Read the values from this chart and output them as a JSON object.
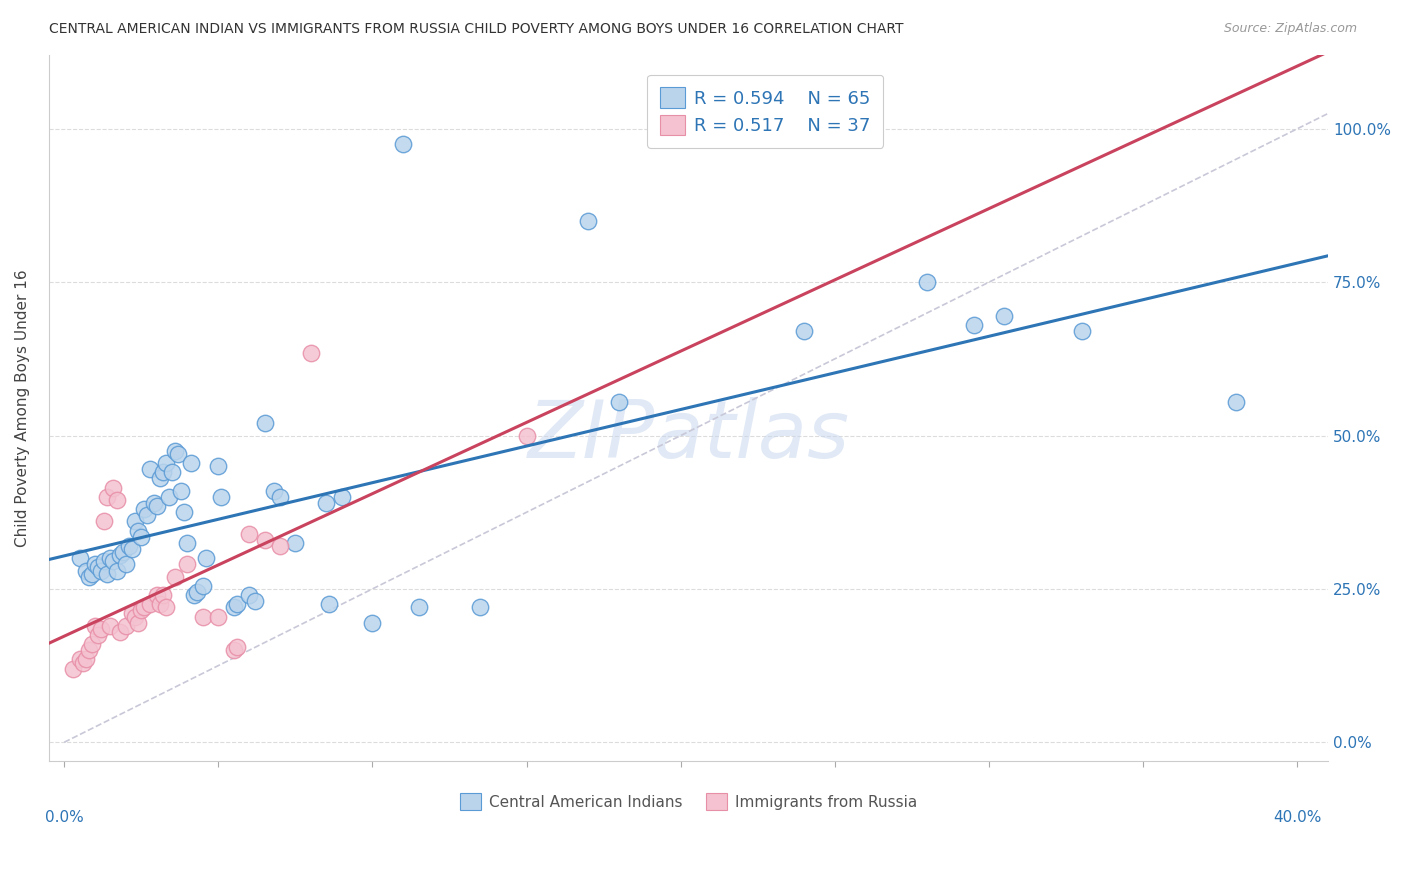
{
  "title": "CENTRAL AMERICAN INDIAN VS IMMIGRANTS FROM RUSSIA CHILD POVERTY AMONG BOYS UNDER 16 CORRELATION CHART",
  "source": "Source: ZipAtlas.com",
  "ylabel": "Child Poverty Among Boys Under 16",
  "legend_blue": {
    "R": "0.594",
    "N": "65",
    "label": "Central American Indians"
  },
  "legend_pink": {
    "R": "0.517",
    "N": "37",
    "label": "Immigrants from Russia"
  },
  "watermark": "ZIPatlas",
  "blue_fill": "#bad4ec",
  "pink_fill": "#f4c2d0",
  "blue_edge": "#5b9bd5",
  "pink_edge": "#e88fa8",
  "blue_line": "#2e75b6",
  "pink_line": "#c9435e",
  "diag_color": "#c8c8d8",
  "blue_scatter": [
    [
      0.5,
      30.0
    ],
    [
      0.7,
      28.0
    ],
    [
      0.8,
      27.0
    ],
    [
      0.9,
      27.5
    ],
    [
      1.0,
      29.0
    ],
    [
      1.1,
      28.5
    ],
    [
      1.2,
      28.0
    ],
    [
      1.3,
      29.5
    ],
    [
      1.4,
      27.5
    ],
    [
      1.5,
      30.0
    ],
    [
      1.6,
      29.5
    ],
    [
      1.7,
      28.0
    ],
    [
      1.8,
      30.5
    ],
    [
      1.9,
      31.0
    ],
    [
      2.0,
      29.0
    ],
    [
      2.1,
      32.0
    ],
    [
      2.2,
      31.5
    ],
    [
      2.3,
      36.0
    ],
    [
      2.4,
      34.5
    ],
    [
      2.5,
      33.5
    ],
    [
      2.6,
      38.0
    ],
    [
      2.7,
      37.0
    ],
    [
      2.8,
      44.5
    ],
    [
      2.9,
      39.0
    ],
    [
      3.0,
      38.5
    ],
    [
      3.1,
      43.0
    ],
    [
      3.2,
      44.0
    ],
    [
      3.3,
      45.5
    ],
    [
      3.4,
      40.0
    ],
    [
      3.5,
      44.0
    ],
    [
      3.6,
      47.5
    ],
    [
      3.7,
      47.0
    ],
    [
      3.8,
      41.0
    ],
    [
      3.9,
      37.5
    ],
    [
      4.0,
      32.5
    ],
    [
      4.1,
      45.5
    ],
    [
      4.2,
      24.0
    ],
    [
      4.3,
      24.5
    ],
    [
      4.5,
      25.5
    ],
    [
      4.6,
      30.0
    ],
    [
      5.0,
      45.0
    ],
    [
      5.1,
      40.0
    ],
    [
      5.5,
      22.0
    ],
    [
      5.6,
      22.5
    ],
    [
      6.0,
      24.0
    ],
    [
      6.2,
      23.0
    ],
    [
      6.5,
      52.0
    ],
    [
      6.8,
      41.0
    ],
    [
      7.0,
      40.0
    ],
    [
      7.5,
      32.5
    ],
    [
      8.5,
      39.0
    ],
    [
      8.6,
      22.5
    ],
    [
      9.0,
      40.0
    ],
    [
      10.0,
      19.5
    ],
    [
      11.5,
      22.0
    ],
    [
      13.5,
      22.0
    ],
    [
      11.0,
      97.5
    ],
    [
      17.0,
      85.0
    ],
    [
      18.0,
      55.5
    ],
    [
      24.0,
      67.0
    ],
    [
      28.0,
      75.0
    ],
    [
      29.5,
      68.0
    ],
    [
      30.5,
      69.5
    ],
    [
      33.0,
      67.0
    ],
    [
      38.0,
      55.5
    ]
  ],
  "pink_scatter": [
    [
      0.3,
      12.0
    ],
    [
      0.5,
      13.5
    ],
    [
      0.6,
      13.0
    ],
    [
      0.7,
      13.5
    ],
    [
      0.8,
      15.0
    ],
    [
      0.9,
      16.0
    ],
    [
      1.0,
      19.0
    ],
    [
      1.1,
      17.5
    ],
    [
      1.2,
      18.5
    ],
    [
      1.3,
      36.0
    ],
    [
      1.4,
      40.0
    ],
    [
      1.5,
      19.0
    ],
    [
      1.6,
      41.5
    ],
    [
      1.7,
      39.5
    ],
    [
      1.8,
      18.0
    ],
    [
      2.0,
      19.0
    ],
    [
      2.2,
      21.0
    ],
    [
      2.3,
      20.5
    ],
    [
      2.4,
      19.5
    ],
    [
      2.5,
      21.5
    ],
    [
      2.6,
      22.0
    ],
    [
      2.8,
      22.5
    ],
    [
      3.0,
      24.0
    ],
    [
      3.1,
      22.5
    ],
    [
      3.2,
      24.0
    ],
    [
      3.3,
      22.0
    ],
    [
      3.6,
      27.0
    ],
    [
      4.0,
      29.0
    ],
    [
      4.5,
      20.5
    ],
    [
      5.0,
      20.5
    ],
    [
      5.5,
      15.0
    ],
    [
      5.6,
      15.5
    ],
    [
      6.0,
      34.0
    ],
    [
      6.5,
      33.0
    ],
    [
      7.0,
      32.0
    ],
    [
      8.0,
      63.5
    ],
    [
      15.0,
      50.0
    ]
  ],
  "xlim": [
    -0.5,
    41.0
  ],
  "ylim": [
    -3.0,
    112.0
  ],
  "xtick_positions": [
    0,
    5,
    10,
    15,
    20,
    25,
    30,
    35,
    40
  ],
  "ytick_positions": [
    0,
    25,
    50,
    75,
    100
  ],
  "ytick_labels_right": [
    "0.0%",
    "25.0%",
    "50.0%",
    "75.0%",
    "100.0%"
  ],
  "background_color": "#ffffff",
  "grid_color": "#dcdcdc"
}
